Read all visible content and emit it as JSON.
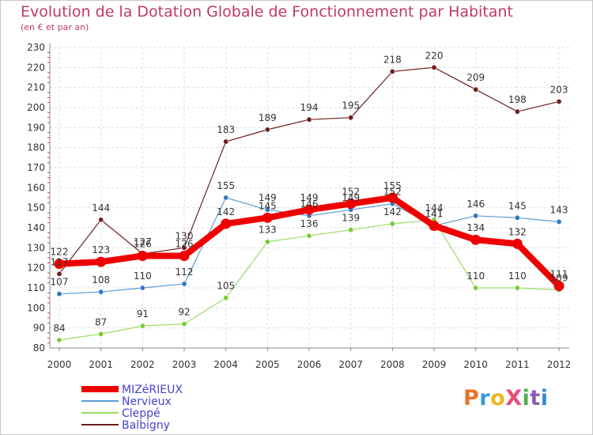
{
  "title": "Evolution de la Dotation Globale de Fonctionnement par Habitant",
  "subtitle": "(en € et par an)",
  "brand": {
    "text": "ProXiti",
    "colors": [
      "#e8732a",
      "#3a9ad9",
      "#f2b61c",
      "#e54e7a",
      "#4cb050",
      "#8e5bb5",
      "#2e8fd1"
    ]
  },
  "chart_data": {
    "type": "line",
    "x": [
      2000,
      2001,
      2002,
      2003,
      2004,
      2005,
      2006,
      2007,
      2008,
      2009,
      2010,
      2011,
      2012
    ],
    "ylim": [
      80,
      230
    ],
    "yticks": [
      80,
      90,
      100,
      110,
      120,
      130,
      140,
      150,
      160,
      170,
      180,
      190,
      200,
      210,
      220,
      230
    ],
    "grid": true,
    "legend_position": "bottom-left",
    "series": [
      {
        "name": "Balbigny",
        "color": "#6e1e1e",
        "marker": "#6e1e1e",
        "width": 1.2,
        "values": [
          117,
          144,
          127,
          130,
          183,
          189,
          194,
          195,
          218,
          220,
          209,
          198,
          203
        ],
        "labels": [
          "117",
          "144",
          "127",
          "130",
          "183",
          "189",
          "194",
          "195",
          "218",
          "220",
          "209",
          "198",
          "203"
        ]
      },
      {
        "name": "Nervieux",
        "color": "#5b9bd5",
        "marker": "#2f78c4",
        "width": 1.2,
        "values": [
          107,
          108,
          110,
          112,
          155,
          149,
          146,
          149,
          152,
          141,
          146,
          145,
          143
        ],
        "labels": [
          "107",
          "108",
          "110",
          "112",
          "155",
          "149",
          "146",
          "149",
          "152",
          "141",
          "146",
          "145",
          "143"
        ]
      },
      {
        "name": "Cleppé",
        "color": "#99dd66",
        "marker": "#77cc33",
        "width": 1.2,
        "values": [
          84,
          87,
          91,
          92,
          105,
          133,
          136,
          139,
          142,
          144,
          110,
          110,
          109
        ],
        "labels": [
          "84",
          "87",
          "91",
          "92",
          "105",
          "133",
          "136",
          "139",
          "142",
          "144",
          "110",
          "110",
          "109"
        ]
      },
      {
        "name": "MIZéRIEUX",
        "color": "#ee0000",
        "marker": "#ee0000",
        "width": 8,
        "values": [
          122,
          123,
          126,
          126,
          142,
          145,
          149,
          152,
          155,
          141,
          134,
          132,
          111
        ],
        "labels": [
          "122",
          "123",
          "126",
          "126",
          "142",
          "145",
          "149",
          "152",
          "155",
          "141",
          "134",
          "132",
          "111"
        ]
      }
    ],
    "legend": [
      {
        "name": "MIZéRIEUX",
        "color": "#ee0000",
        "width": 8
      },
      {
        "name": "Nervieux",
        "color": "#5b9bd5",
        "width": 2
      },
      {
        "name": "Cleppé",
        "color": "#99dd66",
        "width": 2
      },
      {
        "name": "Balbigny",
        "color": "#6e1e1e",
        "width": 2
      }
    ]
  }
}
